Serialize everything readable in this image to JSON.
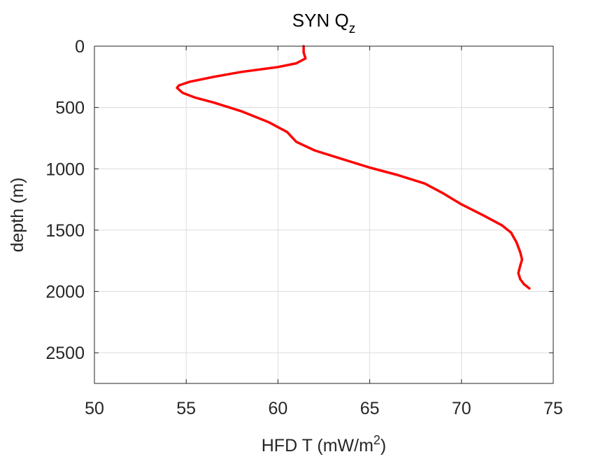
{
  "chart_data": {
    "type": "line",
    "title": "SYN Q",
    "title_subscript": "z",
    "xlabel": "HFD T (mW/m",
    "xlabel_superscript": "2",
    "xlabel_suffix": ")",
    "ylabel": "depth (m)",
    "xlim": [
      50,
      75
    ],
    "ylim": [
      0,
      2750
    ],
    "y_reversed": true,
    "grid": true,
    "x_ticks": [
      50,
      55,
      60,
      65,
      70,
      75
    ],
    "y_ticks": [
      0,
      500,
      1000,
      1500,
      2000,
      2500
    ],
    "series": [
      {
        "color": "#ff0000",
        "x": [
          61.4,
          61.4,
          61.5,
          61.0,
          60.0,
          58.0,
          56.5,
          55.2,
          54.6,
          54.5,
          54.8,
          55.5,
          56.5,
          58.0,
          59.5,
          60.5,
          61.0,
          62.0,
          63.5,
          65.0,
          66.5,
          68.0,
          69.0,
          70.0,
          71.2,
          72.2,
          72.7,
          73.0,
          73.2,
          73.3,
          73.2,
          73.1,
          73.2,
          73.4,
          73.7
        ],
        "y": [
          0,
          50,
          100,
          140,
          170,
          210,
          250,
          290,
          320,
          340,
          380,
          420,
          460,
          530,
          620,
          700,
          780,
          850,
          920,
          990,
          1050,
          1120,
          1200,
          1290,
          1380,
          1460,
          1520,
          1600,
          1680,
          1740,
          1790,
          1850,
          1900,
          1940,
          1975
        ]
      }
    ]
  }
}
